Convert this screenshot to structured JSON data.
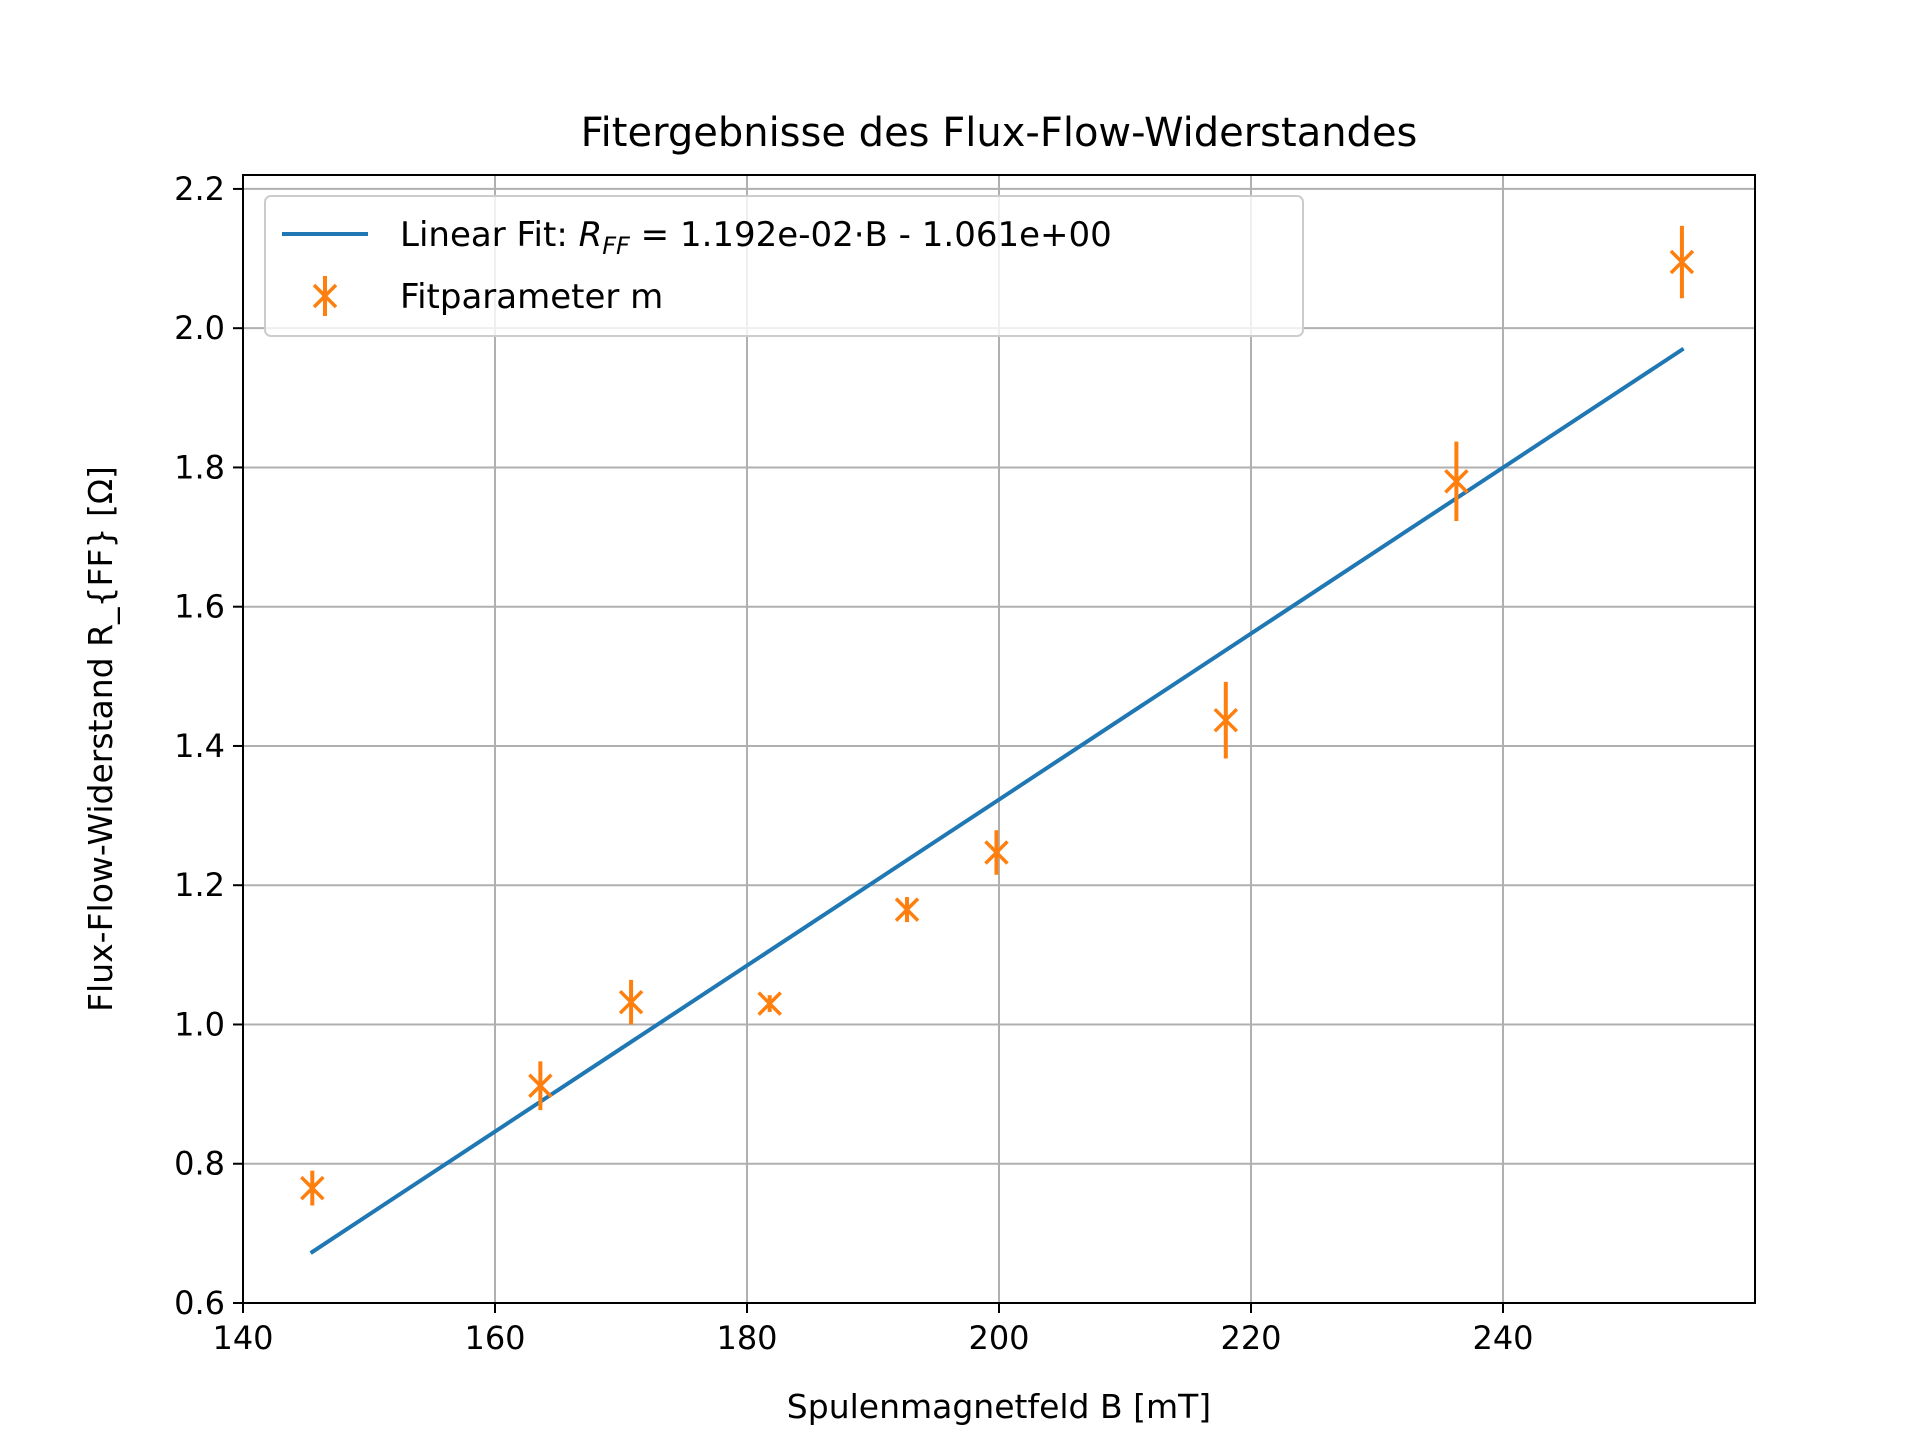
{
  "chart_data": {
    "type": "scatter",
    "title": "Fitergebnisse des Flux-Flow-Widerstandes",
    "xlabel": "Spulenmagnetfeld B [mT]",
    "ylabel": "Flux-Flow-Widerstand R_{FF} [Ω]",
    "xlim": [
      140,
      260
    ],
    "ylim": [
      0.6,
      2.22
    ],
    "xticks": [
      140,
      160,
      180,
      200,
      220,
      240
    ],
    "yticks": [
      0.6,
      0.8,
      1.0,
      1.2,
      1.4,
      1.6,
      1.8,
      2.0,
      2.2
    ],
    "xtick_labels": [
      "140",
      "160",
      "180",
      "200",
      "220",
      "240"
    ],
    "ytick_labels": [
      "0.6",
      "0.8",
      "1.0",
      "1.2",
      "1.4",
      "1.6",
      "1.8",
      "2.0",
      "2.2"
    ],
    "grid": true,
    "legend_position": "top-left",
    "series": [
      {
        "name": "Fitparameter m",
        "kind": "errorbar",
        "color": "#ff7f0e",
        "x": [
          145.5,
          163.6,
          170.8,
          181.8,
          192.7,
          199.8,
          218.0,
          236.3,
          254.2
        ],
        "y": [
          0.765,
          0.912,
          1.032,
          1.03,
          1.165,
          1.247,
          1.437,
          1.78,
          2.095
        ],
        "yerr": [
          0.025,
          0.035,
          0.032,
          0.012,
          0.018,
          0.032,
          0.055,
          0.057,
          0.052
        ]
      },
      {
        "name": "Linear Fit",
        "kind": "line",
        "color": "#1f77b4",
        "slope": 0.01192,
        "intercept": -1.061,
        "x_range": [
          145.5,
          254.2
        ]
      }
    ],
    "legend": {
      "fit_prefix": "Linear Fit: ",
      "fit_symbol": "R",
      "fit_subscript": "FF",
      "fit_equation": " = 1.192e-02·B - 1.061e+00",
      "points_label": "Fitparameter m"
    }
  }
}
